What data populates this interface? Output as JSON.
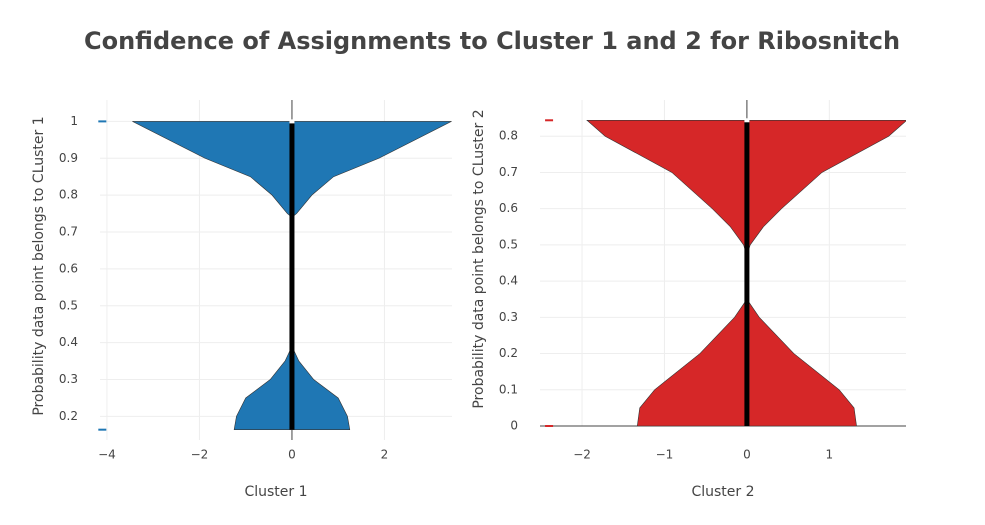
{
  "title": "Confidence of Assignments to Cluster 1 and 2 for Ribosnitch",
  "chart_data": [
    {
      "type": "violin",
      "x_label": "Cluster 1",
      "y_label": "Probability data point belongs to CLuster 1",
      "color": "#1f77b4",
      "xlim": [
        -4.15,
        3.46
      ],
      "ylim": [
        0.136,
        1.058
      ],
      "xticks": [
        {
          "value": -4,
          "label": "−4"
        },
        {
          "value": -2,
          "label": "−2"
        },
        0,
        2
      ],
      "yticks": [
        0.2,
        0.3,
        0.4,
        0.5,
        0.6,
        0.7,
        0.8,
        0.9,
        1
      ],
      "grid": true,
      "density": {
        "y": [
          0.164,
          0.2,
          0.25,
          0.3,
          0.35,
          0.39,
          0.5,
          0.6,
          0.74,
          0.75,
          0.8,
          0.85,
          0.9,
          1
        ],
        "half_width": [
          1.25,
          1.2,
          1.0,
          0.47,
          0.15,
          0,
          0,
          0,
          0,
          0.1,
          0.43,
          0.9,
          1.88,
          3.45
        ]
      },
      "box": {
        "low": 0.164,
        "high": 1,
        "median": 1
      },
      "points": {
        "x": [
          -4.1,
          -4.1
        ],
        "y": [
          1,
          0.164
        ]
      }
    },
    {
      "type": "violin",
      "x_label": "Cluster 2",
      "y_label": "Probability data point belongs to CLuster 2",
      "color": "#d62728",
      "xlim": [
        -2.51,
        1.93
      ],
      "ylim": [
        0,
        0.9
      ],
      "xticks": [
        {
          "value": -2,
          "label": "−2"
        },
        {
          "value": -1,
          "label": "−1"
        },
        0,
        1
      ],
      "yticks": [
        0,
        0.1,
        0.2,
        0.3,
        0.4,
        0.5,
        0.6,
        0.7,
        0.8
      ],
      "grid": true,
      "density": {
        "y": [
          0,
          0.05,
          0.1,
          0.2,
          0.3,
          0.35,
          0.47,
          0.5,
          0.55,
          0.6,
          0.7,
          0.8,
          0.844
        ],
        "half_width": [
          1.33,
          1.3,
          1.12,
          0.57,
          0.15,
          0,
          0,
          0.04,
          0.2,
          0.42,
          0.91,
          1.72,
          1.94
        ]
      },
      "box": {
        "low": 0,
        "high": 0.844,
        "median": 0.844
      },
      "points": {
        "x": [
          -2.4,
          -2.4
        ],
        "y": [
          0.844,
          0
        ]
      }
    }
  ]
}
